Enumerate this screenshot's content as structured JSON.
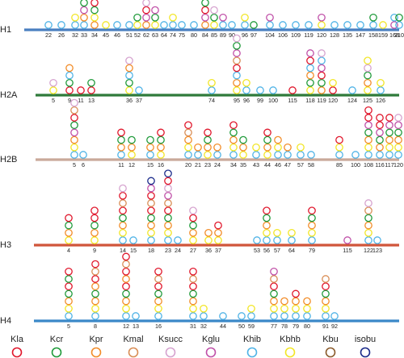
{
  "legend": [
    {
      "key": "Kla",
      "label": "Kla",
      "color": "#e0162b"
    },
    {
      "key": "Kcr",
      "label": "Kcr",
      "color": "#1f9a3a"
    },
    {
      "key": "Kpr",
      "label": "Kpr",
      "color": "#f28c28"
    },
    {
      "key": "Kmal",
      "label": "Kmal",
      "color": "#d98e56"
    },
    {
      "key": "Ksucc",
      "label": "Ksucc",
      "color": "#d6a3cf"
    },
    {
      "key": "Kglu",
      "label": "Kglu",
      "color": "#c050a8"
    },
    {
      "key": "Khib",
      "label": "Khib",
      "color": "#4fb3e6"
    },
    {
      "key": "Kbhb",
      "label": "Kbhb",
      "color": "#f2e626"
    },
    {
      "key": "Kbu",
      "label": "Kbu",
      "color": "#8a5a2b"
    },
    {
      "key": "isobu",
      "label": "isobu",
      "color": "#1a2a8a"
    }
  ],
  "histones": [
    {
      "name": "H1",
      "line_color": "#4a7fc0",
      "sites": [
        {
          "pos": "22",
          "mods": [
            "Khib"
          ]
        },
        {
          "pos": "26",
          "mods": [
            "Khib"
          ]
        },
        {
          "pos": "32",
          "mods": [
            "Khib",
            "Kbhb"
          ]
        },
        {
          "pos": "33",
          "mods": [
            "Khib",
            "Kpr",
            "Kglu",
            "Kcr"
          ]
        },
        {
          "pos": "34",
          "mods": [
            "Kpr",
            "Kbhb",
            "Kcr",
            "Kla",
            "Khib"
          ]
        },
        {
          "pos": "45",
          "mods": [
            "Kbhb"
          ]
        },
        {
          "pos": "46",
          "mods": [
            "Khib"
          ]
        },
        {
          "pos": "51",
          "mods": [
            "Khib"
          ]
        },
        {
          "pos": "52",
          "mods": [
            "Kbhb",
            "Kcr"
          ]
        },
        {
          "pos": "62",
          "mods": [
            "Kpr",
            "Kglu",
            "Kla",
            "Ksucc"
          ]
        },
        {
          "pos": "63",
          "mods": [
            "Kbhb",
            "Kcr",
            "Kglu"
          ]
        },
        {
          "pos": "64",
          "mods": [
            "Khib"
          ]
        },
        {
          "pos": "74",
          "mods": [
            "Khib",
            "Kbhb"
          ]
        },
        {
          "pos": "75",
          "mods": [
            "Khib"
          ]
        },
        {
          "pos": "80",
          "mods": [
            "Khib"
          ]
        },
        {
          "pos": "84",
          "mods": [
            "Kpr",
            "Kglu",
            "Kla",
            "Kcr"
          ]
        },
        {
          "pos": "85",
          "mods": [
            "Kbhb",
            "Kcr",
            "Ksucc"
          ]
        },
        {
          "pos": "89",
          "mods": [
            "Khib",
            "Kglu"
          ]
        },
        {
          "pos": "90",
          "mods": [
            "Khib"
          ]
        },
        {
          "pos": "96",
          "mods": [
            "Khib",
            "Kbhb"
          ]
        },
        {
          "pos": "97",
          "mods": [
            "Kcr"
          ]
        },
        {
          "pos": "104",
          "mods": [
            "Khib",
            "Kglu"
          ]
        },
        {
          "pos": "106",
          "mods": [
            "Khib"
          ]
        },
        {
          "pos": "109",
          "mods": [
            "Khib"
          ]
        },
        {
          "pos": "119",
          "mods": [
            "Khib"
          ]
        },
        {
          "pos": "120",
          "mods": [
            "Kbhb",
            "Kglu"
          ]
        },
        {
          "pos": "128",
          "mods": [
            "Khib"
          ]
        },
        {
          "pos": "135",
          "mods": [
            "Khib"
          ]
        },
        {
          "pos": "147",
          "mods": [
            "Khib"
          ]
        },
        {
          "pos": "158",
          "mods": [
            "Khib",
            "Kcr"
          ]
        },
        {
          "pos": "159",
          "mods": [
            "Kbhb"
          ]
        },
        {
          "pos": "168",
          "mods": [
            "Kglu",
            "Khib"
          ]
        },
        {
          "pos": "210",
          "mods": [
            "Khib",
            "Kcr"
          ]
        }
      ]
    },
    {
      "name": "H2A",
      "line_color": "#2f7a3a",
      "sites": [
        {
          "pos": "5",
          "mods": [
            "Kbhb",
            "Ksucc"
          ]
        },
        {
          "pos": "9",
          "mods": [
            "Kla",
            "Kcr",
            "Khib",
            "Kpr"
          ]
        },
        {
          "pos": "11",
          "mods": [
            "Kla"
          ]
        },
        {
          "pos": "13",
          "mods": [
            "Kla",
            "Kcr"
          ]
        },
        {
          "pos": "36",
          "mods": [
            "Kbhb",
            "Kcr",
            "Khib",
            "Kpr",
            "Ksucc"
          ]
        },
        {
          "pos": "37",
          "mods": [
            "Khib"
          ]
        },
        {
          "pos": "74",
          "mods": [
            "Khib",
            "Kbhb"
          ]
        },
        {
          "pos": "95",
          "mods": [
            "Kbhb",
            "Kpr",
            "Khib",
            "Kla",
            "Kmal",
            "Kglu",
            "Kcr",
            "Ksucc"
          ]
        },
        {
          "pos": "96",
          "mods": [
            "Khib",
            "Kbhb"
          ]
        },
        {
          "pos": "99",
          "mods": [
            "Khib"
          ]
        },
        {
          "pos": "100",
          "mods": [
            "Khib"
          ]
        },
        {
          "pos": "115",
          "mods": [
            "Kla"
          ]
        },
        {
          "pos": "118",
          "mods": [
            "Kbhb",
            "Kcr",
            "Kpr",
            "Khib",
            "Kla",
            "Kglu"
          ]
        },
        {
          "pos": "119",
          "mods": [
            "Kpr",
            "Kcr",
            "Kla",
            "Kglu",
            "Khib",
            "Ksucc"
          ]
        },
        {
          "pos": "120",
          "mods": [
            "Kla",
            "Kbhb"
          ]
        },
        {
          "pos": "124",
          "mods": [
            "Khib"
          ]
        },
        {
          "pos": "125",
          "mods": [
            "Kbhb",
            "Kpr",
            "Kcr",
            "Ksucc",
            "Kbhb"
          ]
        },
        {
          "pos": "126",
          "mods": [
            "Khib",
            "Kbhb"
          ]
        }
      ]
    },
    {
      "name": "H2B",
      "line_color": "#c9a99a",
      "sites": [
        {
          "pos": "5",
          "mods": [
            "Khib",
            "Kbhb",
            "Kpr",
            "Kglu",
            "Kcr",
            "Kla",
            "Kmal",
            "Ksucc"
          ]
        },
        {
          "pos": "6",
          "mods": [
            "Khib"
          ]
        },
        {
          "pos": "11",
          "mods": [
            "Khib",
            "Kpr",
            "Kcr",
            "Kla"
          ]
        },
        {
          "pos": "12",
          "mods": [
            "Kbhb",
            "Kpr",
            "Kcr"
          ]
        },
        {
          "pos": "15",
          "mods": [
            "Khib",
            "Kpr",
            "Kcr"
          ]
        },
        {
          "pos": "16",
          "mods": [
            "Kbhb",
            "Kpr",
            "Kcr",
            "Kla"
          ]
        },
        {
          "pos": "20",
          "mods": [
            "Khib",
            "Kbhb",
            "Kpr",
            "Kmal",
            "Kla"
          ]
        },
        {
          "pos": "21",
          "mods": [
            "Khib",
            "Kpr"
          ]
        },
        {
          "pos": "23",
          "mods": [
            "Kbhb",
            "Kpr",
            "Kcr",
            "Kla"
          ]
        },
        {
          "pos": "24",
          "mods": [
            "Khib",
            "Kpr"
          ]
        },
        {
          "pos": "34",
          "mods": [
            "Khib",
            "Kbhb",
            "Kpr",
            "Kcr",
            "Kla"
          ]
        },
        {
          "pos": "35",
          "mods": [
            "Kbhb",
            "Kpr",
            "Kcr"
          ]
        },
        {
          "pos": "43",
          "mods": [
            "Khib",
            "Kbhb"
          ]
        },
        {
          "pos": "44",
          "mods": [
            "Kbhb",
            "Kpr",
            "Kcr",
            "Kla"
          ]
        },
        {
          "pos": "46",
          "mods": [
            "Khib",
            "Kbhb",
            "Kpr"
          ]
        },
        {
          "pos": "47",
          "mods": [
            "Khib",
            "Kpr"
          ]
        },
        {
          "pos": "57",
          "mods": [
            "Khib",
            "Kbhb"
          ]
        },
        {
          "pos": "58",
          "mods": [
            "Khib"
          ]
        },
        {
          "pos": "85",
          "mods": [
            "Khib",
            "Kbhb",
            "Kla"
          ]
        },
        {
          "pos": "100",
          "mods": [
            "Khib"
          ]
        },
        {
          "pos": "108",
          "mods": [
            "Khib",
            "Kbhb",
            "Kpr",
            "Kcr",
            "Kglu",
            "Kla",
            "Kla"
          ]
        },
        {
          "pos": "116",
          "mods": [
            "Khib",
            "Kpr",
            "Kcr",
            "Kglu",
            "Kla",
            "Kla"
          ]
        },
        {
          "pos": "117",
          "mods": [
            "Khib",
            "Kbhb",
            "Kpr",
            "Kcr",
            "Kglu",
            "Kla"
          ]
        },
        {
          "pos": "120",
          "mods": [
            "Khib",
            "Kbhb",
            "Kpr",
            "Kcr",
            "Kglu",
            "Ksucc"
          ]
        }
      ]
    },
    {
      "name": "H3",
      "line_color": "#d0553a",
      "sites": [
        {
          "pos": "4",
          "mods": [
            "Kbhb",
            "Kpr",
            "Kcr",
            "Kla"
          ]
        },
        {
          "pos": "9",
          "mods": [
            "Kbhb",
            "Kpr",
            "Kcr",
            "Kla",
            "Kla"
          ]
        },
        {
          "pos": "14",
          "mods": [
            "Khib",
            "Kbhb",
            "Kpr",
            "Kcr",
            "Kla",
            "Kmal",
            "Kla",
            "Ksucc"
          ]
        },
        {
          "pos": "15",
          "mods": [
            "Khib"
          ]
        },
        {
          "pos": "18",
          "mods": [
            "Khib",
            "Kbhb",
            "Kpr",
            "Kcr",
            "Kla",
            "Kmal",
            "Kla",
            "Kglu",
            "isobu"
          ]
        },
        {
          "pos": "23",
          "mods": [
            "Khib",
            "Kbhb",
            "Kpr",
            "Kcr",
            "Kla",
            "Kmal",
            "Kglu",
            "Ksucc",
            "Kla",
            "isobu"
          ]
        },
        {
          "pos": "24",
          "mods": [
            "Khib"
          ]
        },
        {
          "pos": "27",
          "mods": [
            "Kbhb",
            "Kpr",
            "Kcr",
            "Kla",
            "Ksucc"
          ]
        },
        {
          "pos": "36",
          "mods": [
            "Kbhb",
            "Kpr"
          ]
        },
        {
          "pos": "37",
          "mods": [
            "Kbhb",
            "Kpr",
            "Kla"
          ]
        },
        {
          "pos": "53",
          "mods": [
            "Khib"
          ]
        },
        {
          "pos": "56",
          "mods": [
            "Khib",
            "Kbhb",
            "Kpr",
            "Kcr",
            "Kla"
          ]
        },
        {
          "pos": "57",
          "mods": [
            "Khib",
            "Kbhb"
          ]
        },
        {
          "pos": "64",
          "mods": [
            "Khib",
            "Kbhb"
          ]
        },
        {
          "pos": "79",
          "mods": [
            "Khib",
            "Kbhb",
            "Kpr",
            "Kcr",
            "Kla"
          ]
        },
        {
          "pos": "115",
          "mods": [
            "Kglu"
          ]
        },
        {
          "pos": "122",
          "mods": [
            "Khib",
            "Kbhb",
            "Kpr",
            "Kcr",
            "Kmal",
            "Ksucc"
          ]
        },
        {
          "pos": "123",
          "mods": [
            "Khib"
          ]
        }
      ]
    },
    {
      "name": "H4",
      "line_color": "#3a88c8",
      "sites": [
        {
          "pos": "5",
          "mods": [
            "Khib",
            "Kbhb",
            "Kpr",
            "Kcr",
            "Kla",
            "Kcr",
            "Kla"
          ]
        },
        {
          "pos": "8",
          "mods": [
            "Khib",
            "Kbhb",
            "Kpr",
            "Kcr",
            "Kpr",
            "Kla",
            "Kmal",
            "Kla"
          ]
        },
        {
          "pos": "12",
          "mods": [
            "Khib",
            "Kbhb",
            "Kpr",
            "Kcr",
            "Kla",
            "Kpr",
            "Kla",
            "Kmal",
            "Kla"
          ]
        },
        {
          "pos": "13",
          "mods": [
            "Khib"
          ]
        },
        {
          "pos": "16",
          "mods": [
            "Khib",
            "Kbhb",
            "Kpr",
            "Kcr",
            "Kla",
            "Kmal",
            "Kla"
          ]
        },
        {
          "pos": "31",
          "mods": [
            "Khib",
            "Kbhb",
            "Kpr",
            "Kcr",
            "Kla",
            "Kmal",
            "Kla"
          ]
        },
        {
          "pos": "32",
          "mods": [
            "Khib",
            "Kbhb"
          ]
        },
        {
          "pos": "44",
          "mods": [
            "Khib"
          ]
        },
        {
          "pos": "50",
          "mods": [
            "Khib"
          ]
        },
        {
          "pos": "59",
          "mods": [
            "Khib",
            "Kbhb"
          ]
        },
        {
          "pos": "77",
          "mods": [
            "Khib",
            "Kbhb",
            "Kpr",
            "Kcr",
            "Kla",
            "Kmal",
            "Kglu"
          ]
        },
        {
          "pos": "78",
          "mods": [
            "Khib",
            "Kbhb",
            "Kpr"
          ]
        },
        {
          "pos": "79",
          "mods": [
            "Khib",
            "Kbhb",
            "Kpr",
            "Kla"
          ]
        },
        {
          "pos": "80",
          "mods": [
            "Khib",
            "Kbhb",
            "Kpr"
          ]
        },
        {
          "pos": "91",
          "mods": [
            "Khib",
            "Kbhb",
            "Kpr",
            "Kcr",
            "Kla",
            "Kmal"
          ]
        },
        {
          "pos": "92",
          "mods": [
            "Khib"
          ]
        }
      ]
    }
  ]
}
